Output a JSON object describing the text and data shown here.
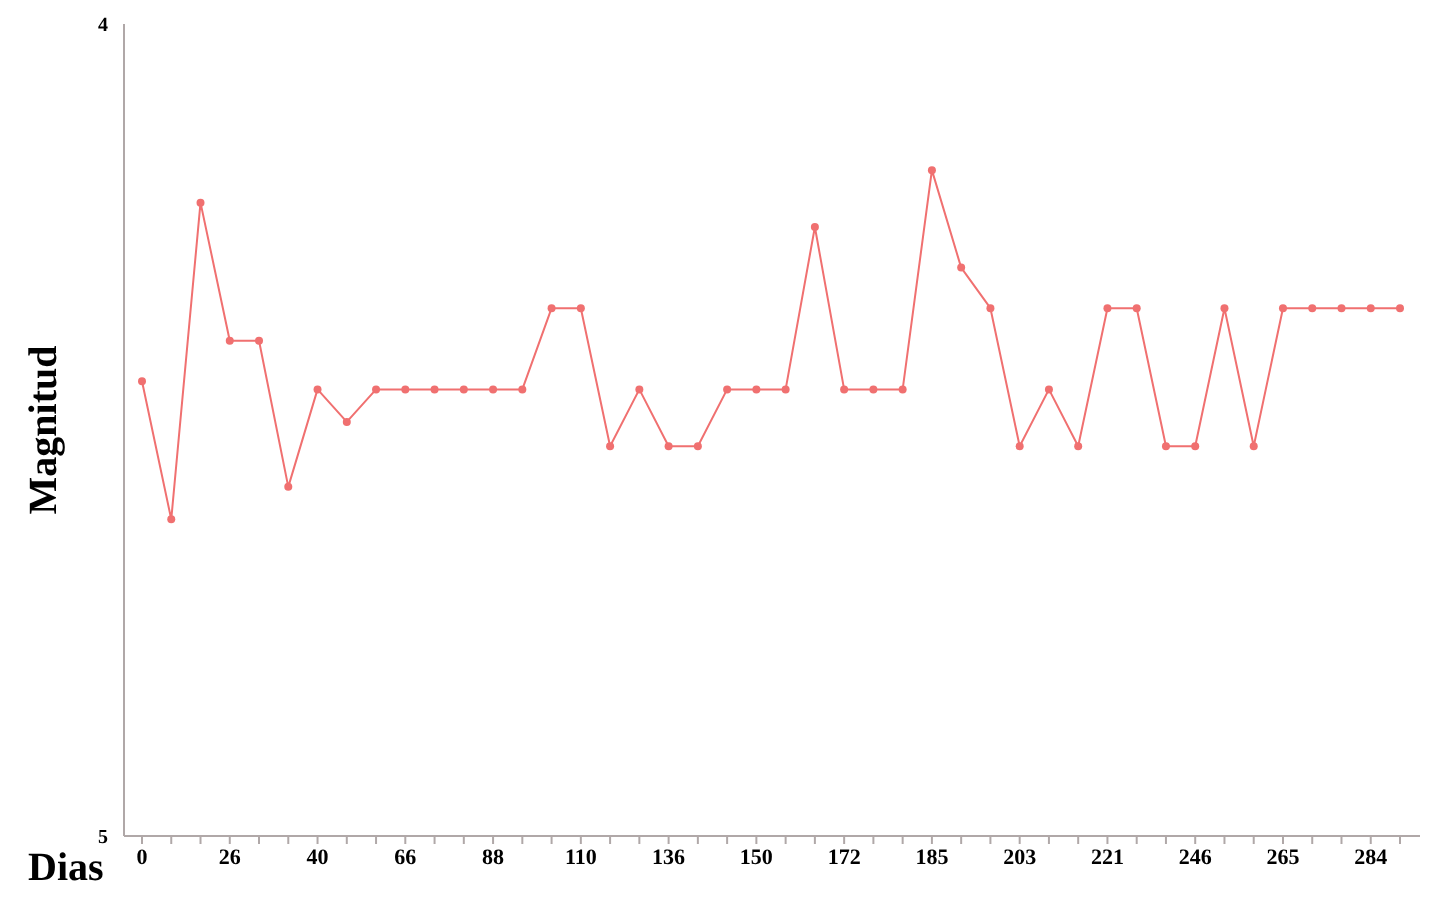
{
  "chart_data": {
    "type": "line",
    "xlabel": "Dias",
    "ylabel": "Magnitud",
    "categories": [
      "0",
      null,
      null,
      "26",
      null,
      null,
      "40",
      null,
      null,
      "66",
      null,
      null,
      "88",
      null,
      null,
      "110",
      null,
      null,
      "136",
      null,
      null,
      "150",
      null,
      null,
      "172",
      null,
      null,
      "185",
      null,
      null,
      "203",
      null,
      null,
      "221",
      null,
      null,
      "246",
      null,
      null,
      "265",
      null,
      null,
      "284",
      null
    ],
    "series": [
      {
        "color": "#f07070",
        "values": [
          4.44,
          4.61,
          4.22,
          4.39,
          4.39,
          4.57,
          4.45,
          4.49,
          4.45,
          4.45,
          4.45,
          4.45,
          4.45,
          4.45,
          4.35,
          4.35,
          4.52,
          4.45,
          4.52,
          4.52,
          4.45,
          4.45,
          4.45,
          4.25,
          4.45,
          4.45,
          4.45,
          4.18,
          4.3,
          4.35,
          4.52,
          4.45,
          4.52,
          4.35,
          4.35,
          4.52,
          4.52,
          4.35,
          4.52,
          4.35,
          4.35,
          4.35,
          4.35,
          4.35
        ]
      }
    ],
    "ylim": [
      5,
      4
    ],
    "yticks": [
      4,
      5
    ],
    "grid": false,
    "legend": false,
    "marker": "circle",
    "line_style": "solid"
  }
}
